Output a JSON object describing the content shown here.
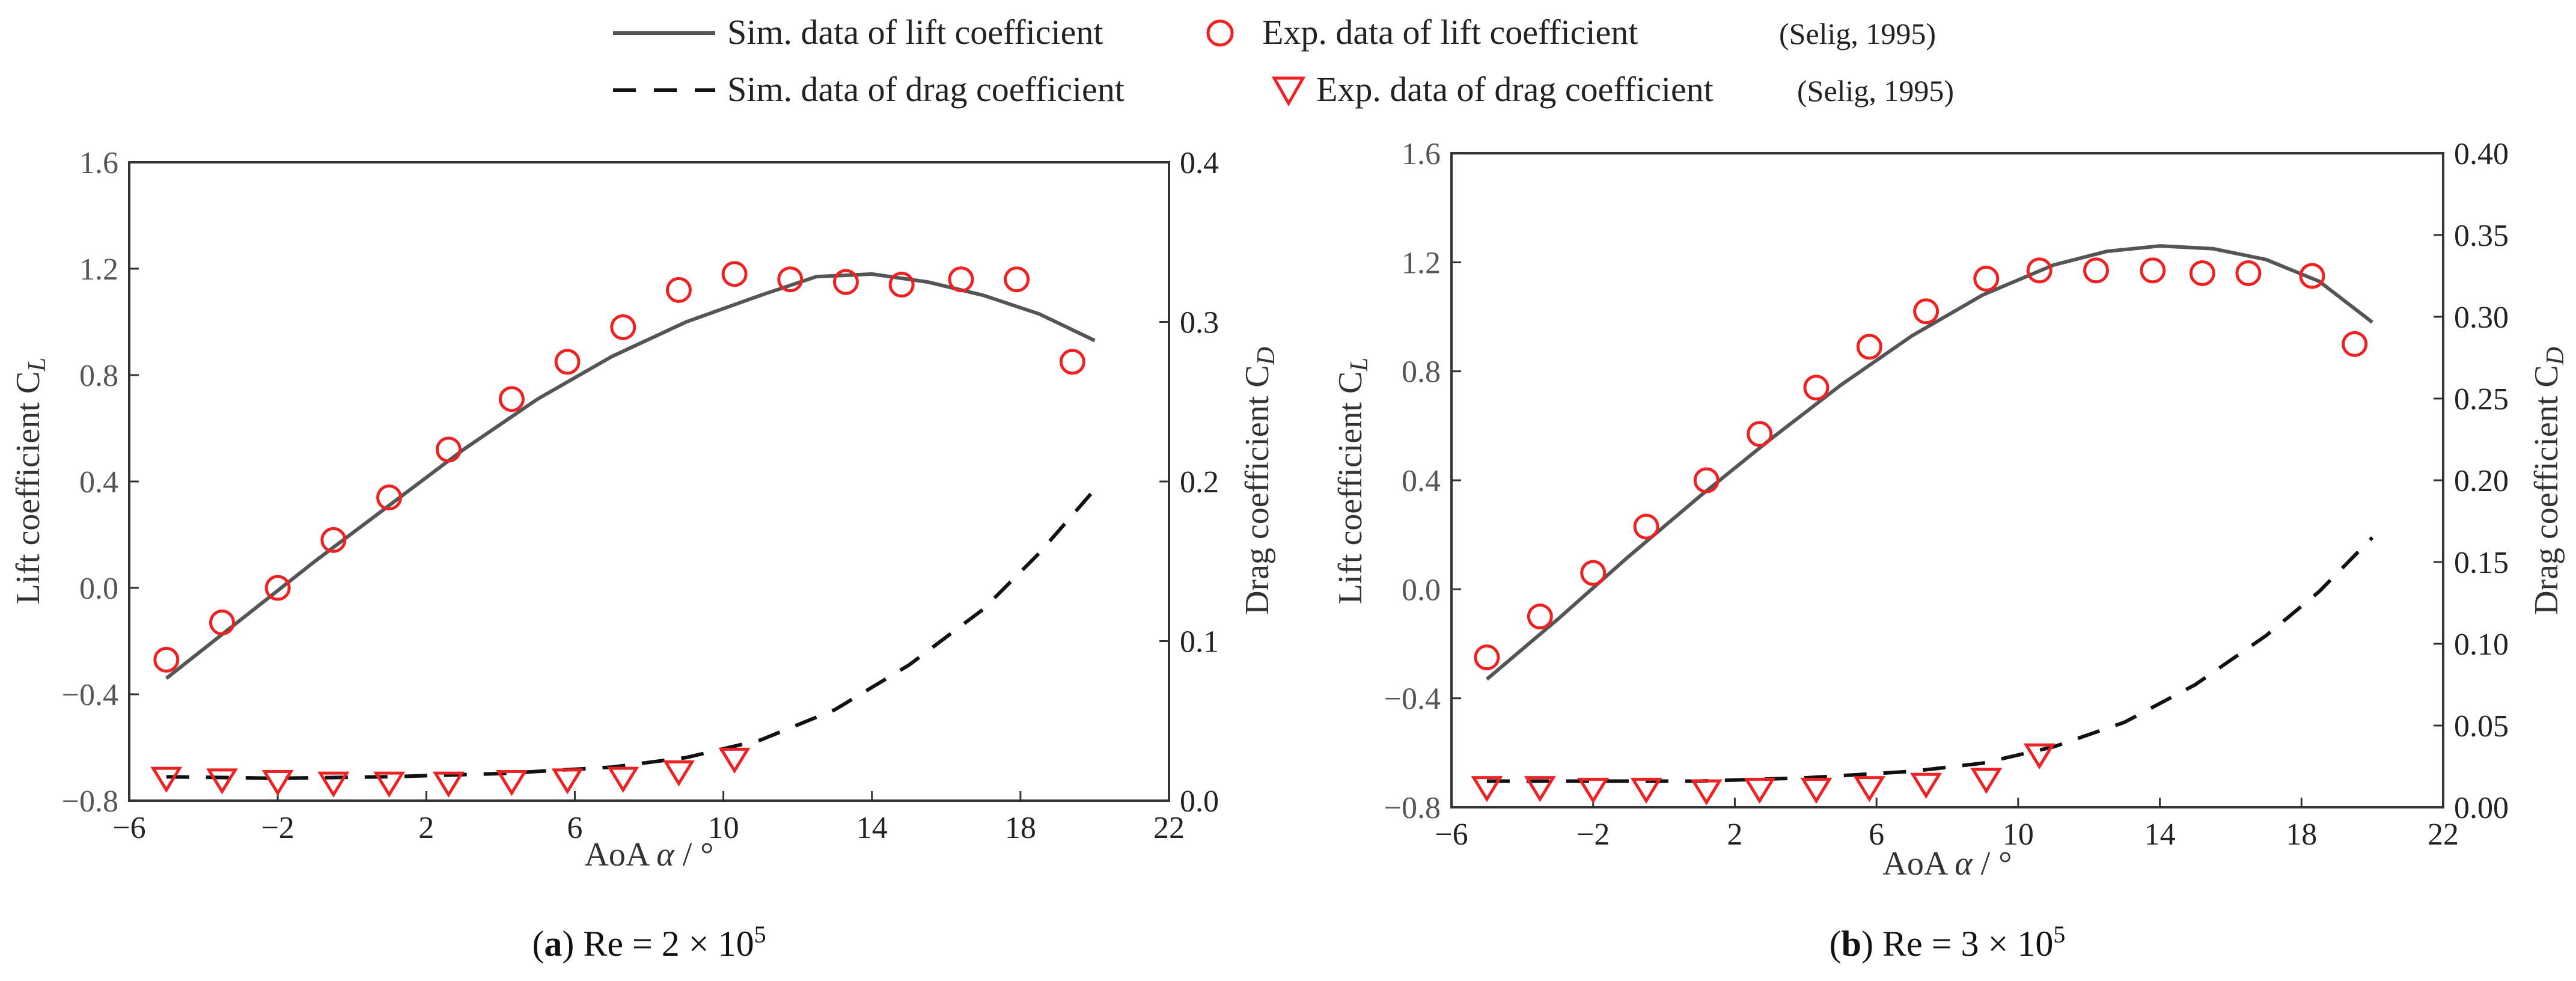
{
  "legend": {
    "sim_lift": "Sim. data of lift coefficient",
    "exp_lift": "Exp. data of lift coefficient",
    "exp_lift_ref": "(Selig, 1995)",
    "sim_drag": "Sim. data of drag coefficient",
    "exp_drag": "Exp. data of drag coefficient",
    "exp_drag_ref": "(Selig, 1995)"
  },
  "colors": {
    "sim_line": "#555555",
    "drag_line": "#111111",
    "exp_marker": "#ee2222",
    "axis": "#333333"
  },
  "chart_data": [
    {
      "type": "line",
      "caption_label": "a",
      "caption_text": " Re = 2 × 10",
      "caption_exp": "5",
      "xlabel_prefix": "AoA ",
      "xlabel_symbol": "α",
      "xlabel_suffix": " / °",
      "ylabel_left": "Lift  coefficient C",
      "ylabel_left_sub": "L",
      "ylabel_right": "Drag coefficient C",
      "ylabel_right_sub": "D",
      "xlim": [
        -6,
        22
      ],
      "ylim_left": [
        -0.8,
        1.6
      ],
      "ylim_right": [
        0.0,
        0.4
      ],
      "xticks": [
        "−6",
        "−2",
        "2",
        "6",
        "10",
        "14",
        "18",
        "22"
      ],
      "xtick_values": [
        -6,
        -2,
        2,
        6,
        10,
        14,
        18,
        22
      ],
      "yticks_left": [
        "1.6",
        "1.2",
        "0.8",
        "0.4",
        "0.0",
        "−0.4",
        "−0.8"
      ],
      "ytick_left_values": [
        1.6,
        1.2,
        0.8,
        0.4,
        0.0,
        -0.4,
        -0.8
      ],
      "yticks_right": [
        "0.4",
        "0.3",
        "0.2",
        "0.1",
        "0.0"
      ],
      "ytick_right_values": [
        0.4,
        0.3,
        0.2,
        0.1,
        0.0
      ],
      "series": [
        {
          "name": "Sim. data of lift coefficient",
          "x": [
            -5,
            -3,
            -1,
            1,
            3,
            5,
            7,
            9,
            11,
            12.5,
            14,
            15.5,
            17,
            18.5,
            20
          ],
          "y": [
            -0.34,
            -0.12,
            0.1,
            0.31,
            0.52,
            0.71,
            0.87,
            1.0,
            1.1,
            1.17,
            1.18,
            1.15,
            1.1,
            1.03,
            0.93
          ]
        },
        {
          "name": "Exp. data of lift coefficient",
          "x": [
            -5,
            -3.5,
            -2,
            -0.5,
            1,
            2.6,
            4.3,
            5.8,
            7.3,
            8.8,
            10.3,
            11.8,
            13.3,
            14.8,
            16.4,
            17.9,
            19.4
          ],
          "y": [
            -0.27,
            -0.13,
            0.0,
            0.18,
            0.34,
            0.52,
            0.71,
            0.85,
            0.98,
            1.12,
            1.18,
            1.16,
            1.15,
            1.14,
            1.16,
            1.16,
            0.85
          ]
        },
        {
          "name": "Sim. data of drag coefficient",
          "x": [
            -5,
            -2,
            1,
            4,
            7,
            9,
            11,
            13,
            15,
            17,
            18.5,
            20
          ],
          "y": [
            0.015,
            0.014,
            0.015,
            0.017,
            0.021,
            0.027,
            0.038,
            0.057,
            0.085,
            0.12,
            0.155,
            0.195
          ]
        },
        {
          "name": "Exp. data of drag coefficient",
          "x": [
            -5,
            -3.5,
            -2,
            -0.5,
            1,
            2.6,
            4.3,
            5.8,
            7.3,
            8.8,
            10.3
          ],
          "y": [
            0.015,
            0.014,
            0.013,
            0.012,
            0.012,
            0.012,
            0.013,
            0.014,
            0.015,
            0.019,
            0.027
          ]
        }
      ]
    },
    {
      "type": "line",
      "caption_label": "b",
      "caption_text": " Re = 3 × 10",
      "caption_exp": "5",
      "xlabel_prefix": "AoA ",
      "xlabel_symbol": "α",
      "xlabel_suffix": " / °",
      "ylabel_left": "Lift  coefficient C",
      "ylabel_left_sub": "L",
      "ylabel_right": "Drag coefficient C",
      "ylabel_right_sub": "D",
      "xlim": [
        -6,
        22
      ],
      "ylim_left": [
        -0.8,
        1.6
      ],
      "ylim_right": [
        0.0,
        0.4
      ],
      "xticks": [
        "−6",
        "−2",
        "2",
        "6",
        "10",
        "14",
        "18",
        "22"
      ],
      "xtick_values": [
        -6,
        -2,
        2,
        6,
        10,
        14,
        18,
        22
      ],
      "yticks_left": [
        "1.6",
        "1.2",
        "0.8",
        "0.4",
        "0.0",
        "−0.4",
        "−0.8"
      ],
      "ytick_left_values": [
        1.6,
        1.2,
        0.8,
        0.4,
        0.0,
        -0.4,
        -0.8
      ],
      "yticks_right": [
        "0.40",
        "0.35",
        "0.30",
        "0.25",
        "0.20",
        "0.15",
        "0.10",
        "0.05",
        "0.00"
      ],
      "ytick_right_values": [
        0.4,
        0.35,
        0.3,
        0.25,
        0.2,
        0.15,
        0.1,
        0.05,
        0.0
      ],
      "series": [
        {
          "name": "Sim. data of lift coefficient",
          "x": [
            -5,
            -3,
            -1,
            1,
            3,
            5,
            7,
            9,
            11,
            12.5,
            14,
            15.5,
            17,
            18.5,
            20
          ],
          "y": [
            -0.33,
            -0.11,
            0.12,
            0.34,
            0.55,
            0.75,
            0.93,
            1.08,
            1.19,
            1.24,
            1.26,
            1.25,
            1.21,
            1.13,
            0.98
          ]
        },
        {
          "name": "Exp. data of lift coefficient",
          "x": [
            -5,
            -3.5,
            -2,
            -0.5,
            1.2,
            2.7,
            4.3,
            5.8,
            7.4,
            9.1,
            10.6,
            12.2,
            13.8,
            15.2,
            16.5,
            18.3,
            19.5
          ],
          "y": [
            -0.25,
            -0.1,
            0.06,
            0.23,
            0.4,
            0.57,
            0.74,
            0.89,
            1.02,
            1.14,
            1.17,
            1.17,
            1.17,
            1.16,
            1.16,
            1.15,
            0.9
          ]
        },
        {
          "name": "Sim. data of drag coefficient",
          "x": [
            -5,
            -2,
            1,
            4,
            7,
            9,
            11,
            13,
            15,
            17,
            18.5,
            20
          ],
          "y": [
            0.016,
            0.016,
            0.016,
            0.018,
            0.022,
            0.027,
            0.037,
            0.052,
            0.075,
            0.105,
            0.132,
            0.165
          ]
        },
        {
          "name": "Exp. data of drag coefficient",
          "x": [
            -5,
            -3.5,
            -2,
            -0.5,
            1.2,
            2.7,
            4.3,
            5.8,
            7.4,
            9.1,
            10.6
          ],
          "y": [
            0.013,
            0.013,
            0.012,
            0.012,
            0.011,
            0.012,
            0.012,
            0.013,
            0.015,
            0.018,
            0.033
          ]
        }
      ]
    }
  ]
}
